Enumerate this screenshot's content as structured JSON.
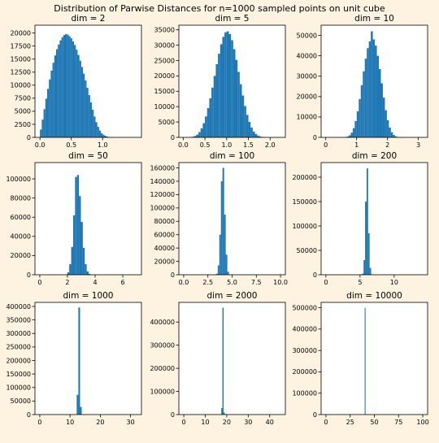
{
  "figure": {
    "suptitle": "Distribution of Parwise Distances for n=1000 sampled points on unit cube",
    "bar_color": "#1f77b4"
  },
  "chart_data": [
    {
      "type": "bar",
      "title": "dim = 2",
      "xlim": [
        -0.08,
        1.62
      ],
      "ylim": [
        0,
        21500
      ],
      "xticks": [
        0.0,
        0.5,
        1.0
      ],
      "xtick_labels": [
        "0.0",
        "0.5",
        "1.0"
      ],
      "yticks": [
        0,
        2500,
        5000,
        7500,
        10000,
        12500,
        15000,
        17500,
        20000
      ],
      "ytick_labels": [
        "0",
        "2500",
        "5000",
        "7500",
        "10000",
        "12500",
        "15000",
        "17500",
        "20000"
      ],
      "bins": {
        "start": 0.0,
        "width": 0.0286,
        "counts": [
          1500,
          3400,
          5400,
          7400,
          9300,
          11100,
          12800,
          14300,
          15700,
          16900,
          17800,
          18600,
          19200,
          19600,
          19800,
          19700,
          19400,
          19000,
          18400,
          17700,
          16800,
          15800,
          14700,
          13500,
          12200,
          10900,
          9500,
          8100,
          6700,
          5300,
          4000,
          2900,
          2000,
          1300,
          800,
          500,
          300,
          150,
          80,
          40,
          20,
          10
        ]
      }
    },
    {
      "type": "bar",
      "title": "dim = 5",
      "xlim": [
        -0.1,
        2.35
      ],
      "ylim": [
        0,
        36500
      ],
      "xticks": [
        0.0,
        0.5,
        1.0,
        1.5,
        2.0
      ],
      "xtick_labels": [
        "0.0",
        "0.5",
        "1.0",
        "1.5",
        "2.0"
      ],
      "yticks": [
        0,
        5000,
        10000,
        15000,
        20000,
        25000,
        30000,
        35000
      ],
      "ytick_labels": [
        "0",
        "5000",
        "10000",
        "15000",
        "20000",
        "25000",
        "30000",
        "35000"
      ],
      "bins": {
        "start": 0.1,
        "width": 0.05,
        "counts": [
          30,
          80,
          200,
          450,
          900,
          1700,
          2900,
          4600,
          6800,
          9500,
          12700,
          16200,
          20000,
          23800,
          27200,
          30300,
          32700,
          34200,
          34500,
          33600,
          31600,
          28700,
          25200,
          21300,
          17300,
          13600,
          10200,
          7300,
          5000,
          3200,
          1900,
          1100,
          600,
          300,
          140,
          60,
          25,
          10
        ]
      }
    },
    {
      "type": "bar",
      "title": "dim = 10",
      "xlim": [
        -0.15,
        3.3
      ],
      "ylim": [
        0,
        55000
      ],
      "xticks": [
        0,
        1,
        2,
        3
      ],
      "xtick_labels": [
        "0",
        "1",
        "2",
        "3"
      ],
      "yticks": [
        0,
        10000,
        20000,
        30000,
        40000,
        50000
      ],
      "ytick_labels": [
        "0",
        "10000",
        "20000",
        "30000",
        "40000",
        "50000"
      ],
      "bins": {
        "start": 0.55,
        "width": 0.065,
        "counts": [
          50,
          150,
          400,
          1000,
          2300,
          4500,
          8000,
          12800,
          18800,
          25600,
          32400,
          38600,
          43700,
          47100,
          52000,
          48000,
          45000,
          40000,
          33500,
          26500,
          19500,
          13300,
          8400,
          4800,
          2500,
          1200,
          500,
          200,
          80,
          30
        ]
      }
    },
    {
      "type": "bar",
      "title": "dim = 50",
      "xlim": [
        -0.35,
        7.35
      ],
      "ylim": [
        0,
        117000
      ],
      "xticks": [
        0,
        2,
        4,
        6
      ],
      "xtick_labels": [
        "0",
        "2",
        "4",
        "6"
      ],
      "yticks": [
        0,
        20000,
        40000,
        60000,
        80000,
        100000
      ],
      "ytick_labels": [
        "0",
        "20000",
        "40000",
        "60000",
        "80000",
        "100000"
      ],
      "bins": {
        "start": 1.85,
        "width": 0.14,
        "counts": [
          300,
          2500,
          11000,
          29000,
          62000,
          102000,
          104000,
          82000,
          55000,
          28000,
          11000,
          3500,
          900,
          150
        ]
      }
    },
    {
      "type": "bar",
      "title": "dim = 100",
      "xlim": [
        -0.5,
        10.5
      ],
      "ylim": [
        0,
        168000
      ],
      "xticks": [
        0.0,
        2.5,
        5.0,
        7.5,
        10.0
      ],
      "xtick_labels": [
        "0.0",
        "2.5",
        "5.0",
        "7.5",
        "10.0"
      ],
      "yticks": [
        0,
        20000,
        40000,
        60000,
        80000,
        100000,
        120000,
        140000,
        160000
      ],
      "ytick_labels": [
        "0",
        "20000",
        "40000",
        "60000",
        "80000",
        "100000",
        "120000",
        "140000",
        "160000"
      ],
      "bins": {
        "start": 3.35,
        "width": 0.165,
        "counts": [
          1500,
          14000,
          60000,
          140000,
          160000,
          90000,
          30000,
          4500,
          400
        ]
      }
    },
    {
      "type": "bar",
      "title": "dim = 200",
      "xlim": [
        -0.7,
        14.9
      ],
      "ylim": [
        0,
        230000
      ],
      "xticks": [
        0,
        5,
        10
      ],
      "xtick_labels": [
        "0",
        "5",
        "10"
      ],
      "yticks": [
        0,
        50000,
        100000,
        150000,
        200000
      ],
      "ytick_labels": [
        "0",
        "50000",
        "100000",
        "150000",
        "200000"
      ],
      "bins": {
        "start": 5.3,
        "width": 0.22,
        "counts": [
          2000,
          30000,
          150000,
          218000,
          85000,
          14000,
          1000
        ]
      }
    },
    {
      "type": "bar",
      "title": "dim = 1000",
      "xlim": [
        -1.6,
        33.6
      ],
      "ylim": [
        0,
        415000
      ],
      "xticks": [
        0,
        10,
        20,
        30
      ],
      "xtick_labels": [
        "0",
        "10",
        "20",
        "30"
      ],
      "yticks": [
        0,
        50000,
        100000,
        150000,
        200000,
        250000,
        300000,
        350000,
        400000
      ],
      "ytick_labels": [
        "0",
        "50000",
        "100000",
        "150000",
        "200000",
        "250000",
        "300000",
        "350000",
        "400000"
      ],
      "bins": {
        "start": 12.2,
        "width": 0.55,
        "counts": [
          73000,
          396000,
          28000
        ]
      }
    },
    {
      "type": "bar",
      "title": "dim = 2000",
      "xlim": [
        -2.3,
        47.3
      ],
      "ylim": [
        0,
        485000
      ],
      "xticks": [
        0,
        10,
        20,
        30,
        40
      ],
      "xtick_labels": [
        "0",
        "10",
        "20",
        "30",
        "40"
      ],
      "yticks": [
        0,
        100000,
        200000,
        300000,
        400000
      ],
      "ytick_labels": [
        "0",
        "100000",
        "200000",
        "300000",
        "400000"
      ],
      "bins": {
        "start": 17.45,
        "width": 0.55,
        "counts": [
          28000,
          462000,
          9000
        ]
      }
    },
    {
      "type": "bar",
      "title": "dim = 10000",
      "xlim": [
        -5,
        105
      ],
      "ylim": [
        0,
        525000
      ],
      "xticks": [
        0,
        25,
        50,
        75,
        100
      ],
      "xtick_labels": [
        "0",
        "25",
        "50",
        "75",
        "100"
      ],
      "yticks": [
        0,
        100000,
        200000,
        300000,
        400000,
        500000
      ],
      "ytick_labels": [
        "0",
        "100000",
        "200000",
        "300000",
        "400000",
        "500000"
      ],
      "bins": {
        "start": 40.0,
        "width": 0.9,
        "counts": [
          500000
        ]
      }
    }
  ]
}
